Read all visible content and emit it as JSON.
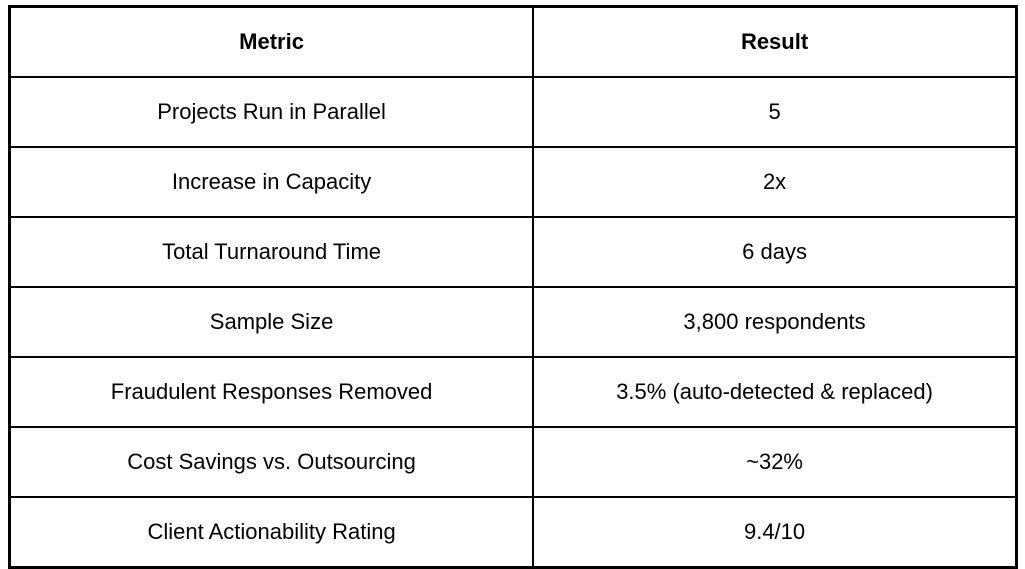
{
  "table": {
    "columns": {
      "metric": "Metric",
      "result": "Result"
    },
    "rows": [
      {
        "metric": "Projects Run in Parallel",
        "result": "5"
      },
      {
        "metric": "Increase in Capacity",
        "result": "2x"
      },
      {
        "metric": "Total Turnaround Time",
        "result": "6 days"
      },
      {
        "metric": "Sample Size",
        "result": "3,800 respondents"
      },
      {
        "metric": "Fraudulent Responses Removed",
        "result": "3.5% (auto-detected & replaced)"
      },
      {
        "metric": "Cost Savings vs. Outsourcing",
        "result": "~32%"
      },
      {
        "metric": "Client Actionability Rating",
        "result": "9.4/10"
      }
    ],
    "colors": {
      "border": "#000000",
      "text": "#000000",
      "background": "#ffffff"
    }
  }
}
